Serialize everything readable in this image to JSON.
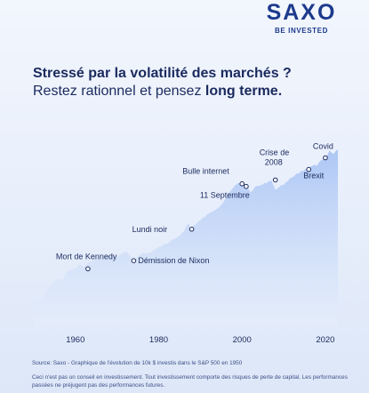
{
  "brand": {
    "name": "SAXO",
    "tagline": "BE INVESTED"
  },
  "headline": {
    "line1": "Stressé par la volatilité des marchés ?",
    "line2_prefix": "Restez rationnel et pensez",
    "line2_emphasis": "long terme."
  },
  "chart_data": {
    "type": "area",
    "title": "",
    "xlabel": "",
    "ylabel": "",
    "xlim": [
      1950,
      2023
    ],
    "x_ticks": [
      1960,
      1980,
      2000,
      2020
    ],
    "y_scale": "log",
    "ylim": [
      4000,
      5000000
    ],
    "grid": false,
    "series": [
      {
        "x": [
          1950,
          1952,
          1954,
          1956,
          1957,
          1958,
          1960,
          1961,
          1962,
          1963,
          1965,
          1966,
          1968,
          1970,
          1972,
          1973,
          1974,
          1975,
          1976,
          1978,
          1980,
          1982,
          1984,
          1986,
          1987,
          1987.9,
          1988,
          1990,
          1992,
          1995,
          1997,
          1999,
          2000,
          2001,
          2002,
          2003,
          2005,
          2007,
          2008,
          2009,
          2011,
          2013,
          2015,
          2016,
          2017,
          2018,
          2019,
          2020,
          2021,
          2022,
          2023
        ],
        "values": [
          10000,
          13500,
          21000,
          27000,
          25500,
          35000,
          39000,
          45500,
          41000,
          47000,
          58000,
          55000,
          63000,
          60000,
          72000,
          64000,
          52000,
          60000,
          67000,
          70000,
          86000,
          96000,
          118000,
          150000,
          205000,
          165000,
          178000,
          230000,
          290000,
          400000,
          640000,
          900000,
          870000,
          790000,
          640000,
          760000,
          850000,
          1000000,
          700000,
          780000,
          960000,
          1250000,
          1450000,
          1470000,
          1700000,
          1680000,
          2050000,
          2250000,
          2950000,
          2600000,
          3050000
        ]
      }
    ],
    "annotations": [
      {
        "label": "Mort de Kennedy",
        "x": 1963,
        "y": 47000
      },
      {
        "label": "Démission de Nixon",
        "x": 1974,
        "y": 52000
      },
      {
        "label": "Lundi noir",
        "x": 1987.9,
        "y": 165000
      },
      {
        "label": "Bulle internet",
        "x": 2000,
        "y": 870000
      },
      {
        "label": "11 Septembre",
        "x": 2001,
        "y": 790000
      },
      {
        "label": "Crise de 2008",
        "lines": [
          "Crise de",
          "2008"
        ],
        "x": 2008,
        "y": 1000000
      },
      {
        "label": "Brexit",
        "x": 2016,
        "y": 1470000
      },
      {
        "label": "Covid",
        "x": 2020,
        "y": 2250000
      }
    ]
  },
  "footnotes": {
    "source": "Source: Saxo - Graphique de l'évolution de 10k $ investis dans le S&P 500 en 1950",
    "disclaimer": "Ceci n'est pas un conseil en investissement. Tout investissement comporte des risques de perte de capital. Les performances passées ne préjugent pas des performances futures."
  },
  "colors": {
    "brand_blue": "#1c3a8c",
    "area_top": "#a9c4f4",
    "area_bottom": "#e6eefb",
    "text": "#1b2a5e"
  }
}
